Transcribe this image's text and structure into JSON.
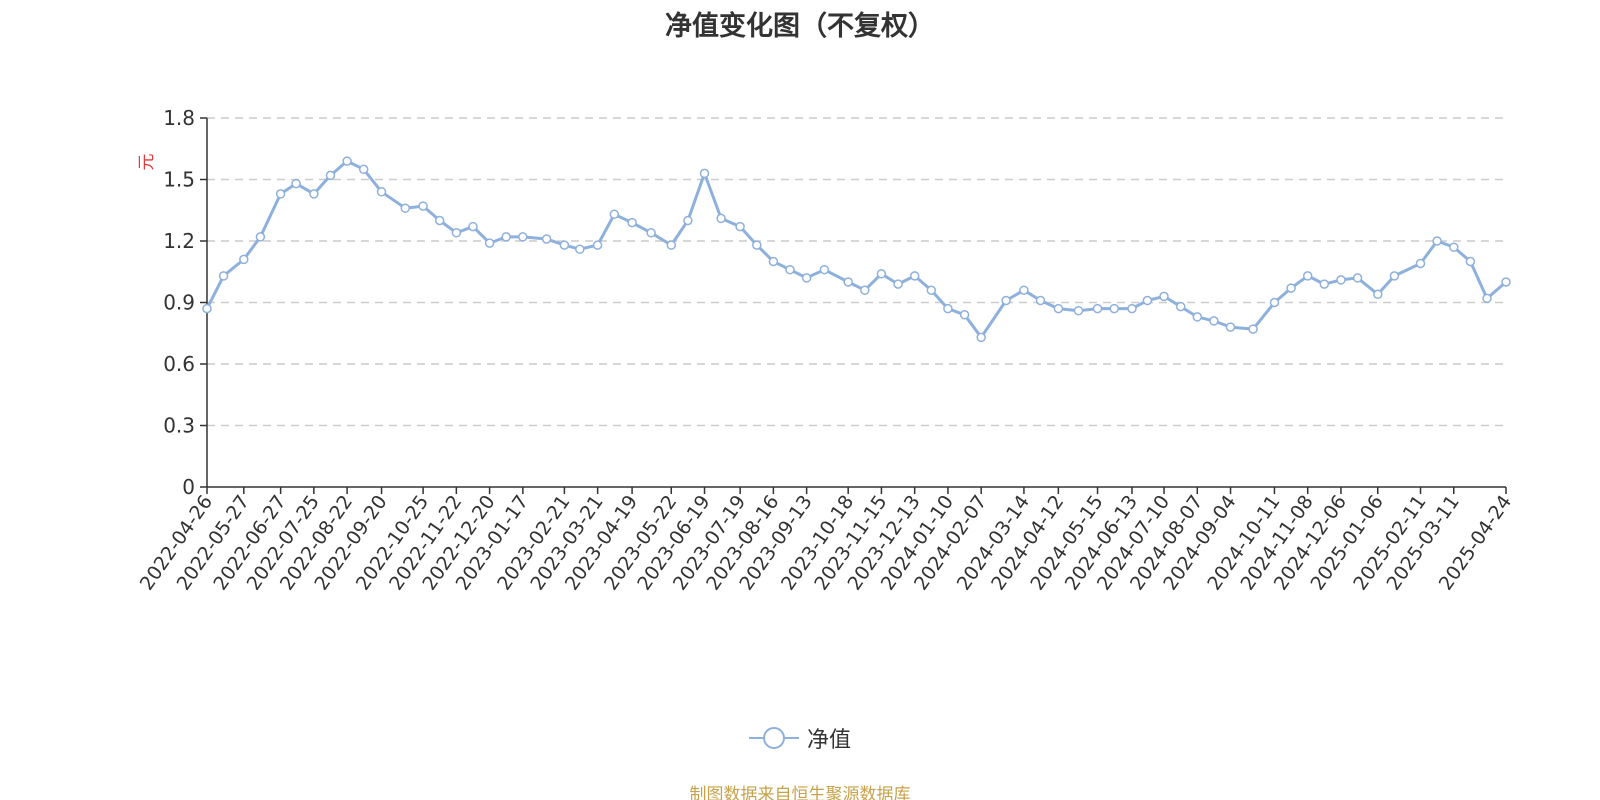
{
  "page_title": "净值变化图（不复权）",
  "source_note": "制图数据来自恒生聚源数据库",
  "colors": {
    "line": "#8eb0dc",
    "axis": "#333333",
    "grid": "#cccccc",
    "unit_label": "#e03c3c",
    "source": "#c8a24a"
  },
  "chart_data": {
    "type": "line",
    "title": "净值变化图（不复权）",
    "ylabel": "元",
    "xlabel": "",
    "ylim": [
      0,
      1.8
    ],
    "y_ticks": [
      0,
      0.3,
      0.6,
      0.9,
      1.2,
      1.5,
      1.8
    ],
    "y_tick_labels": [
      "0",
      "0.3",
      "0.6",
      "0.9",
      "1.2",
      "1.5",
      "1.8"
    ],
    "grid": true,
    "legend_position": "bottom-center",
    "x_tick_labels": [
      "2022-04-26",
      "2022-05-27",
      "2022-06-27",
      "2022-07-25",
      "2022-08-22",
      "2022-09-20",
      "2022-10-25",
      "2022-11-22",
      "2022-12-20",
      "2023-01-17",
      "2023-02-21",
      "2023-03-21",
      "2023-04-19",
      "2023-05-22",
      "2023-06-19",
      "2023-07-19",
      "2023-08-16",
      "2023-09-13",
      "2023-10-18",
      "2023-11-15",
      "2023-12-13",
      "2024-01-10",
      "2024-02-07",
      "2024-03-14",
      "2024-04-12",
      "2024-05-15",
      "2024-06-13",
      "2024-07-10",
      "2024-08-07",
      "2024-09-04",
      "2024-10-11",
      "2024-11-08",
      "2024-12-06",
      "2025-01-06",
      "2025-02-11",
      "2025-03-11",
      "2025-04-24"
    ],
    "series": [
      {
        "name": "净值",
        "x": [
          "2022-04-26",
          "2022-05-10",
          "2022-05-27",
          "2022-06-10",
          "2022-06-27",
          "2022-07-10",
          "2022-07-25",
          "2022-08-08",
          "2022-08-22",
          "2022-09-05",
          "2022-09-20",
          "2022-10-10",
          "2022-10-25",
          "2022-11-08",
          "2022-11-22",
          "2022-12-06",
          "2022-12-20",
          "2023-01-03",
          "2023-01-17",
          "2023-02-06",
          "2023-02-21",
          "2023-03-06",
          "2023-03-21",
          "2023-04-04",
          "2023-04-19",
          "2023-05-05",
          "2023-05-22",
          "2023-06-05",
          "2023-06-19",
          "2023-07-03",
          "2023-07-19",
          "2023-08-02",
          "2023-08-16",
          "2023-08-30",
          "2023-09-13",
          "2023-09-28",
          "2023-10-18",
          "2023-11-01",
          "2023-11-15",
          "2023-11-29",
          "2023-12-13",
          "2023-12-27",
          "2024-01-10",
          "2024-01-24",
          "2024-02-07",
          "2024-02-28",
          "2024-03-14",
          "2024-03-28",
          "2024-04-12",
          "2024-04-29",
          "2024-05-15",
          "2024-05-29",
          "2024-06-13",
          "2024-06-26",
          "2024-07-10",
          "2024-07-24",
          "2024-08-07",
          "2024-08-21",
          "2024-09-04",
          "2024-09-23",
          "2024-10-11",
          "2024-10-25",
          "2024-11-08",
          "2024-11-22",
          "2024-12-06",
          "2024-12-20",
          "2025-01-06",
          "2025-01-20",
          "2025-02-11",
          "2025-02-25",
          "2025-03-11",
          "2025-03-25",
          "2025-04-08",
          "2025-04-24"
        ],
        "values": [
          0.87,
          1.03,
          1.11,
          1.22,
          1.43,
          1.48,
          1.43,
          1.52,
          1.59,
          1.55,
          1.44,
          1.36,
          1.37,
          1.3,
          1.24,
          1.27,
          1.19,
          1.22,
          1.22,
          1.21,
          1.18,
          1.16,
          1.18,
          1.33,
          1.29,
          1.24,
          1.18,
          1.3,
          1.53,
          1.31,
          1.27,
          1.18,
          1.1,
          1.06,
          1.02,
          1.06,
          1.0,
          0.96,
          1.04,
          0.99,
          1.03,
          0.96,
          0.87,
          0.84,
          0.73,
          0.91,
          0.96,
          0.91,
          0.87,
          0.86,
          0.87,
          0.87,
          0.87,
          0.91,
          0.93,
          0.88,
          0.83,
          0.81,
          0.78,
          0.77,
          0.9,
          0.97,
          1.03,
          0.99,
          1.01,
          1.02,
          0.94,
          1.03,
          1.09,
          1.2,
          1.17,
          1.1,
          0.92,
          1.0
        ]
      }
    ]
  }
}
